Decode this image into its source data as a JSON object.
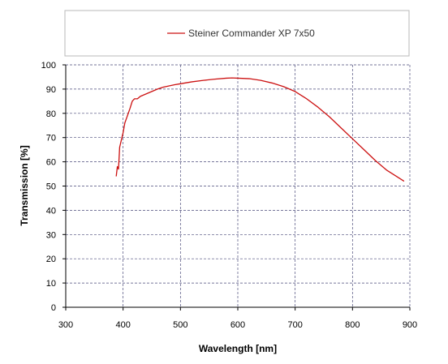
{
  "chart_data": {
    "type": "line",
    "title": "",
    "xlabel": "Wavelength [nm]",
    "ylabel": "Transmission [%]",
    "xlim": [
      300,
      900
    ],
    "ylim": [
      0,
      100
    ],
    "xticks": [
      300,
      400,
      500,
      600,
      700,
      800,
      900
    ],
    "yticks": [
      0,
      10,
      20,
      30,
      40,
      50,
      60,
      70,
      80,
      90,
      100
    ],
    "grid": true,
    "legend_position": "top",
    "series": [
      {
        "name": "Steiner Commander XP 7x50",
        "color": "#cc1111",
        "x": [
          388,
          390,
          392,
          394,
          396,
          398,
          400,
          403,
          406,
          409,
          412,
          416,
          420,
          425,
          430,
          440,
          450,
          460,
          470,
          480,
          490,
          500,
          520,
          540,
          560,
          580,
          590,
          600,
          620,
          640,
          660,
          680,
          700,
          720,
          740,
          760,
          780,
          800,
          820,
          840,
          860,
          880,
          890
        ],
        "y": [
          54,
          58,
          57,
          66,
          68,
          70,
          72,
          76,
          78,
          80,
          82,
          85,
          86,
          86,
          87,
          88,
          89,
          90,
          90.8,
          91.3,
          91.8,
          92.2,
          93,
          93.6,
          94.1,
          94.5,
          94.6,
          94.5,
          94.3,
          93.6,
          92.5,
          91,
          89,
          86,
          82.5,
          78.5,
          74,
          69.5,
          65,
          60.5,
          56.5,
          53.5,
          52
        ]
      }
    ]
  }
}
